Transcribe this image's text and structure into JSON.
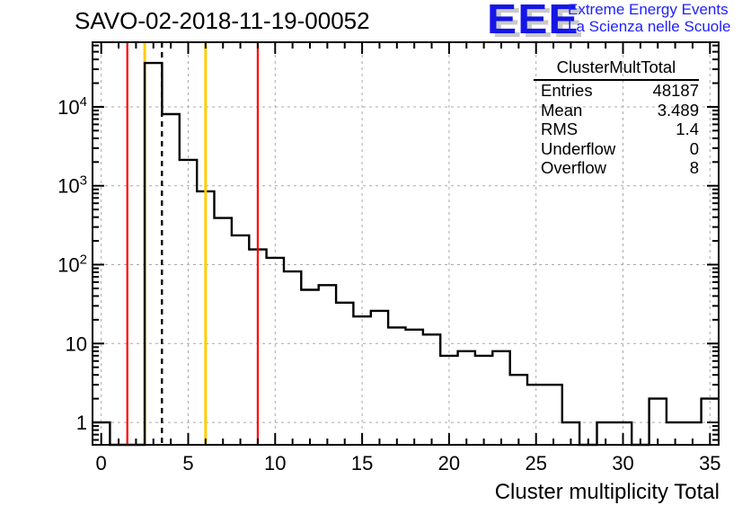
{
  "header": {
    "title": "SAVO-02-2018-11-19-00052"
  },
  "logo": {
    "acronym": "EEE",
    "line1": "Extreme Energy Events",
    "line2": "La Scienza nelle Scuole",
    "text_color": "#2121ff",
    "shadow_color": "#c9c9c9"
  },
  "stats_box": {
    "title": "ClusterMultTotal",
    "rows": [
      {
        "label": "Entries",
        "value": "48187"
      },
      {
        "label": "Mean",
        "value": "3.489"
      },
      {
        "label": "RMS",
        "value": "1.4"
      },
      {
        "label": "Underflow",
        "value": "0"
      },
      {
        "label": "Overflow",
        "value": "8"
      }
    ]
  },
  "chart_data": {
    "type": "bar",
    "subtype": "step-histogram-log-y",
    "title": "SAVO-02-2018-11-19-00052",
    "xlabel": "Cluster multiplicity Total",
    "ylabel": "",
    "x_range": [
      -0.5,
      35.5
    ],
    "y_scale": "log",
    "y_range": [
      0.52,
      66000
    ],
    "grid": true,
    "grid_color": "#a9a9a9",
    "line_color": "#000000",
    "background": "#ffffff",
    "legend": "none",
    "bin_width": 1,
    "bin_centers": [
      0,
      1,
      2,
      3,
      4,
      5,
      6,
      7,
      8,
      9,
      10,
      11,
      12,
      13,
      14,
      15,
      16,
      17,
      18,
      19,
      20,
      21,
      22,
      23,
      24,
      25,
      26,
      27,
      28,
      29,
      30,
      31,
      32,
      33,
      34,
      35
    ],
    "values": [
      1,
      0,
      0,
      36000,
      8100,
      2130,
      850,
      390,
      235,
      156,
      122,
      82,
      48,
      55,
      33,
      22,
      26,
      16,
      15,
      13,
      7,
      8,
      7,
      8,
      4,
      3,
      3,
      1,
      0,
      1,
      1,
      0,
      2,
      1,
      1,
      2
    ],
    "x_major_ticks": [
      {
        "value": 0,
        "label": "0"
      },
      {
        "value": 5,
        "label": "5"
      },
      {
        "value": 10,
        "label": "10"
      },
      {
        "value": 15,
        "label": "15"
      },
      {
        "value": 20,
        "label": "20"
      },
      {
        "value": 25,
        "label": "25"
      },
      {
        "value": 30,
        "label": "30"
      },
      {
        "value": 35,
        "label": "35"
      }
    ],
    "x_minor_tick_step": 1,
    "y_major_ticks": [
      {
        "value": 1,
        "label": "1",
        "exp": ""
      },
      {
        "value": 10,
        "label": "10",
        "exp": ""
      },
      {
        "value": 100,
        "label": "10",
        "exp": "2"
      },
      {
        "value": 1000,
        "label": "10",
        "exp": "3"
      },
      {
        "value": 10000,
        "label": "10",
        "exp": "4"
      }
    ],
    "marker_lines": [
      {
        "x": 1.5,
        "color": "#ff0000",
        "style": "solid",
        "layer": "front",
        "name": "red-threshold-low"
      },
      {
        "x": 2.5,
        "color": "#ffcc00",
        "style": "solid",
        "layer": "back",
        "name": "yellow-threshold-low"
      },
      {
        "x": 3.489,
        "color": "#000000",
        "style": "dashed",
        "layer": "front",
        "name": "mean-line"
      },
      {
        "x": 6,
        "color": "#ffcc00",
        "style": "solid",
        "layer": "front",
        "name": "yellow-threshold-high"
      },
      {
        "x": 9,
        "color": "#ff0000",
        "style": "solid",
        "layer": "front",
        "name": "red-threshold-high"
      }
    ]
  }
}
